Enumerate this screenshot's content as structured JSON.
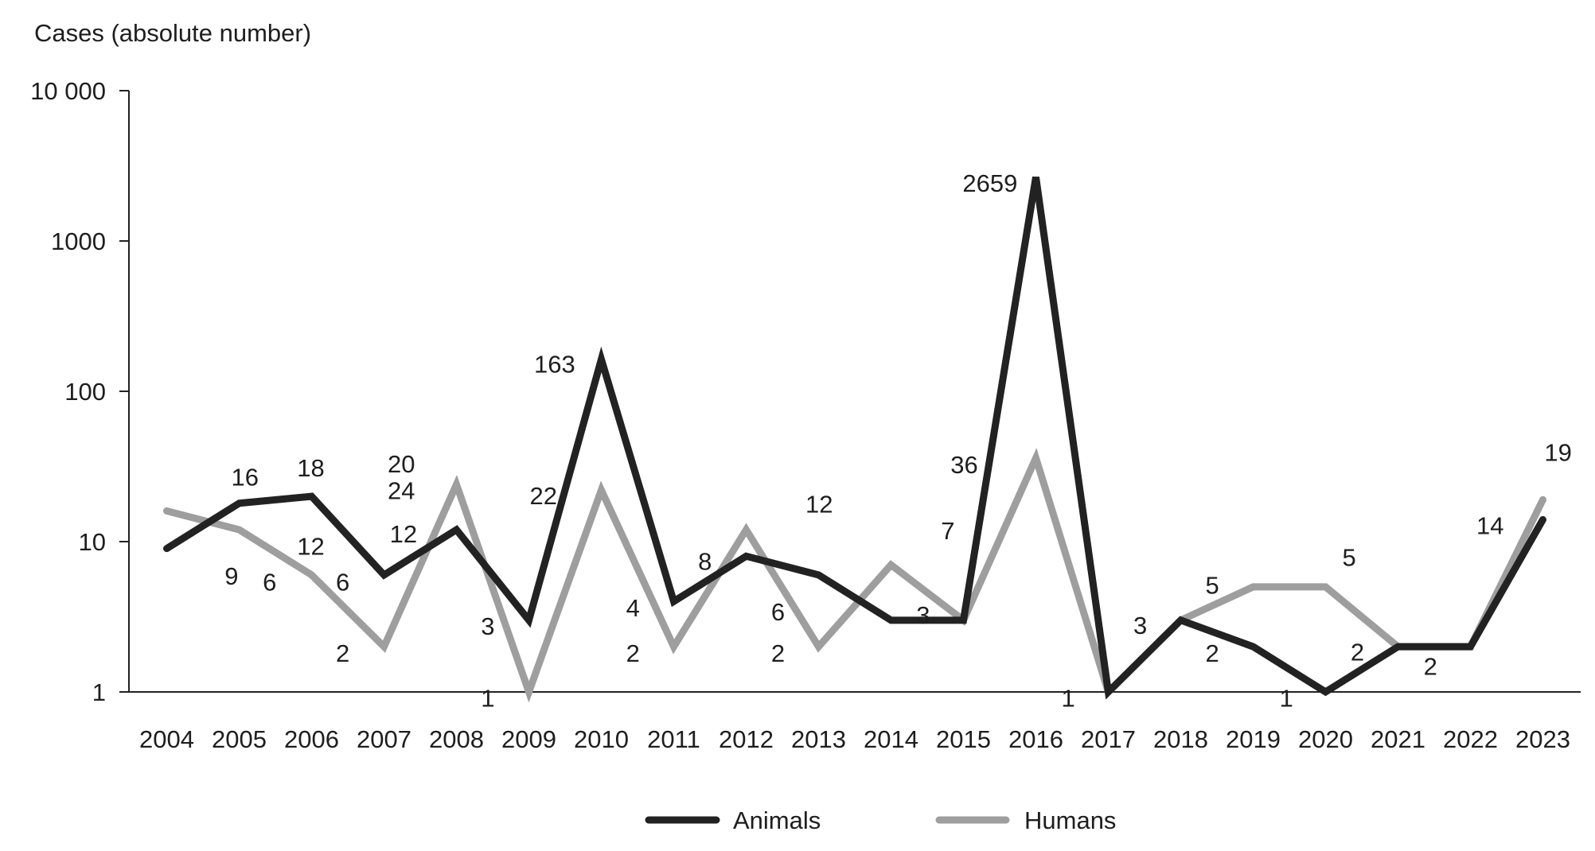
{
  "chart_data": {
    "type": "line",
    "title": "",
    "ylabel": "Cases (absolute number)",
    "xlabel": "",
    "yscale": "log",
    "ylim": [
      1,
      10000
    ],
    "yticks": [
      {
        "value": 1,
        "label": "1"
      },
      {
        "value": 10,
        "label": "10"
      },
      {
        "value": 100,
        "label": "100"
      },
      {
        "value": 1000,
        "label": "1000"
      },
      {
        "value": 10000,
        "label": "10 000"
      }
    ],
    "x": [
      "2004",
      "2005",
      "2006",
      "2007",
      "2008",
      "2009",
      "2010",
      "2011",
      "2012",
      "2013",
      "2014",
      "2015",
      "2016",
      "2017",
      "2018",
      "2019",
      "2020",
      "2021",
      "2022",
      "2023"
    ],
    "series": [
      {
        "name": "Animals",
        "color": "#222222",
        "values": [
          9,
          18,
          20,
          6,
          12,
          3,
          163,
          4,
          8,
          6,
          3,
          3,
          2659,
          1,
          3,
          2,
          1,
          2,
          2,
          14
        ]
      },
      {
        "name": "Humans",
        "color": "#9e9e9e",
        "values": [
          16,
          12,
          6,
          2,
          24,
          1,
          22,
          2,
          12,
          2,
          7,
          3,
          36,
          1,
          3,
          5,
          5,
          2,
          2,
          19
        ]
      }
    ],
    "data_labels": [
      "16",
      "18",
      "20",
      "24",
      "12",
      "9",
      "6",
      "12",
      "6",
      "2",
      "3",
      "1",
      "22",
      "163",
      "4",
      "2",
      "8",
      "6",
      "2",
      "12",
      "3",
      "7",
      "36",
      "2659",
      "1",
      "3",
      "5",
      "2",
      "1",
      "5",
      "2",
      "2",
      "14",
      "19"
    ],
    "legend": {
      "placement": "bottom-center",
      "entries": [
        "Animals",
        "Humans"
      ]
    },
    "grid": false
  }
}
